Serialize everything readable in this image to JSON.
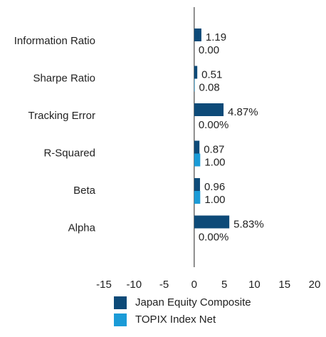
{
  "chart_data": {
    "type": "hbar",
    "categories": [
      "Information Ratio",
      "Sharpe Ratio",
      "Tracking Error",
      "R-Squared",
      "Beta",
      "Alpha"
    ],
    "series": [
      {
        "name": "Japan Equity Composite",
        "color": "#0d4a78",
        "values": [
          1.19,
          0.51,
          4.87,
          0.87,
          0.96,
          5.83
        ],
        "value_labels": [
          "1.19",
          "0.51",
          "4.87%",
          "0.87",
          "0.96",
          "5.83%"
        ]
      },
      {
        "name": "TOPIX Index Net",
        "color": "#1b9bd7",
        "values": [
          0,
          0.08,
          0,
          1,
          1,
          0
        ],
        "value_labels": [
          "0.00",
          "0.08",
          "0.00%",
          "1.00",
          "1.00",
          "0.00%"
        ]
      }
    ],
    "xlim": [
      -15,
      20
    ],
    "xticks": [
      -15,
      -10,
      -5,
      0,
      5,
      10,
      15,
      20
    ],
    "legend": "bottom"
  }
}
